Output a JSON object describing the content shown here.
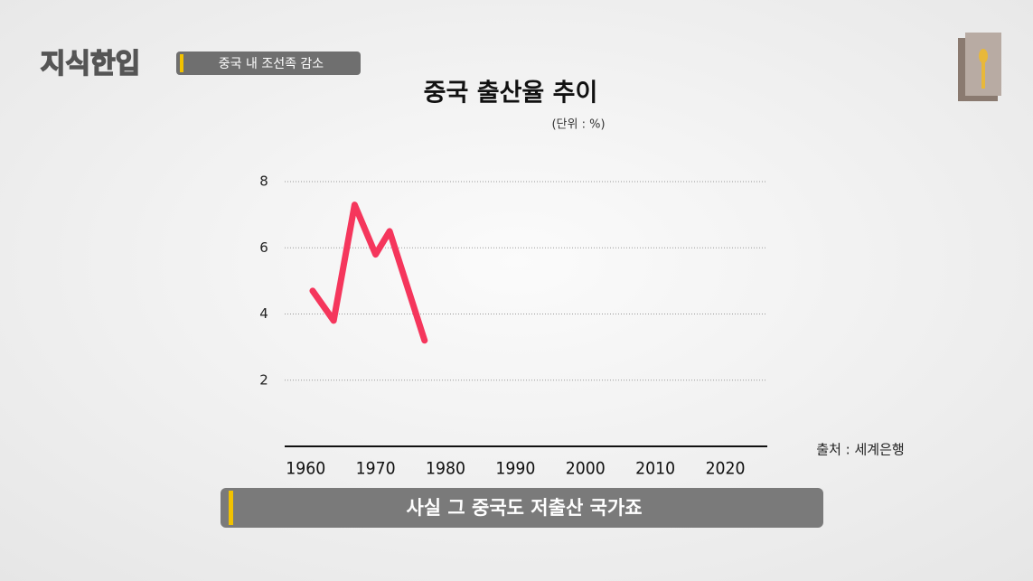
{
  "header": {
    "logo": "지식한입",
    "topic": "중국 내 조선족 감소"
  },
  "caption": "사실 그 중국도 저출산 국가죠",
  "chart_data": {
    "type": "line",
    "title": "중국 출산율 추이",
    "unit_note": "(단위 : %)",
    "source": "출처 : 세계은행",
    "x": [
      1961,
      1964,
      1967,
      1970,
      1972,
      1977
    ],
    "values": [
      4.7,
      3.8,
      7.3,
      5.8,
      6.5,
      3.2
    ],
    "color": "#f5365c",
    "xlim": [
      1957,
      2026
    ],
    "ylim": [
      0,
      8
    ],
    "xticks": [
      1960,
      1970,
      1980,
      1990,
      2000,
      2010,
      2020
    ],
    "yticks": [
      2,
      4,
      6,
      8
    ],
    "grid": true
  }
}
